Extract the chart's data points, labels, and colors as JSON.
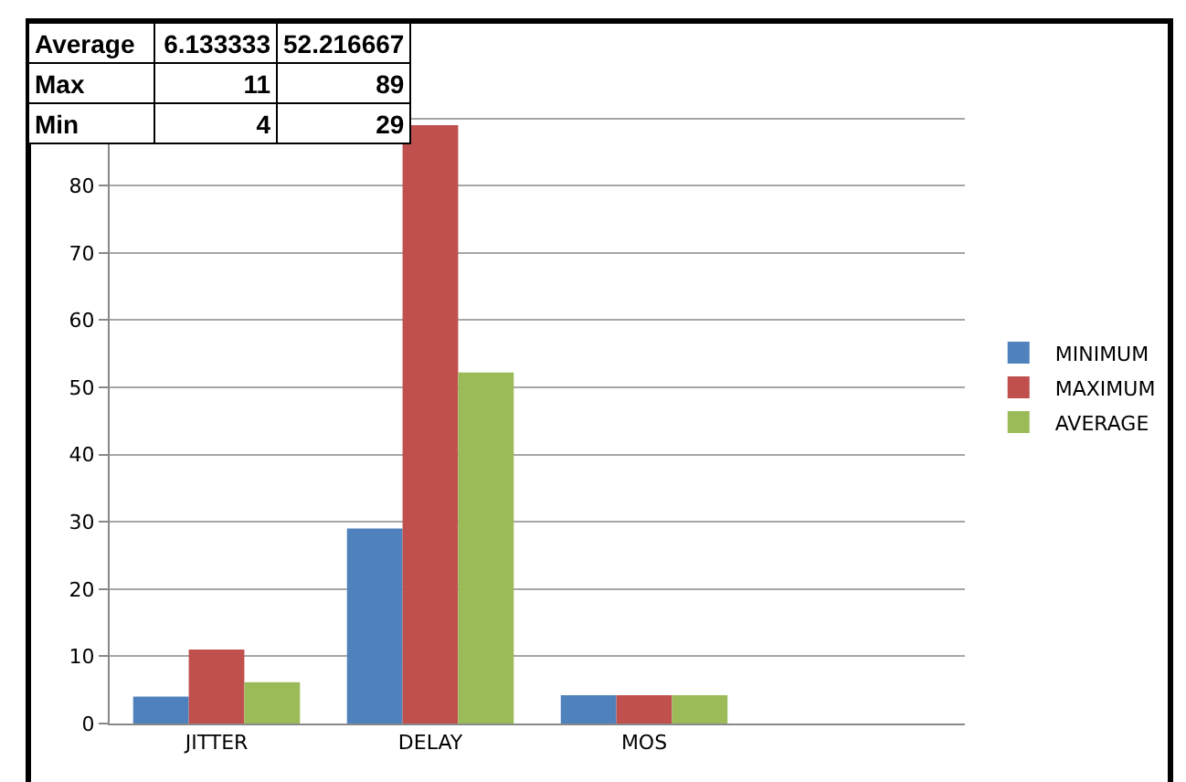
{
  "chart_data": {
    "type": "bar",
    "categories": [
      "JITTER",
      "DELAY",
      "MOS",
      null
    ],
    "series": [
      {
        "name": "MINIMUM",
        "color": "#4f81bd",
        "values": [
          4,
          29,
          4.2,
          null
        ]
      },
      {
        "name": "MAXIMUM",
        "color": "#c0504d",
        "values": [
          11,
          89,
          4.2,
          null
        ]
      },
      {
        "name": "AVERAGE",
        "color": "#9bbb59",
        "values": [
          6.133333,
          52.216667,
          4.2,
          null
        ]
      }
    ],
    "ylim": [
      0,
      100
    ],
    "yticks": [
      0,
      10,
      20,
      30,
      40,
      50,
      60,
      70,
      80,
      {
        "value": 90,
        "label": null
      },
      {
        "value": 100,
        "label": null
      }
    ],
    "grid": "y",
    "legend": "right",
    "annotations": [
      "Average",
      "6.133333",
      "52.216667",
      "Max",
      "11",
      "89",
      "Min",
      "4",
      "29"
    ]
  }
}
